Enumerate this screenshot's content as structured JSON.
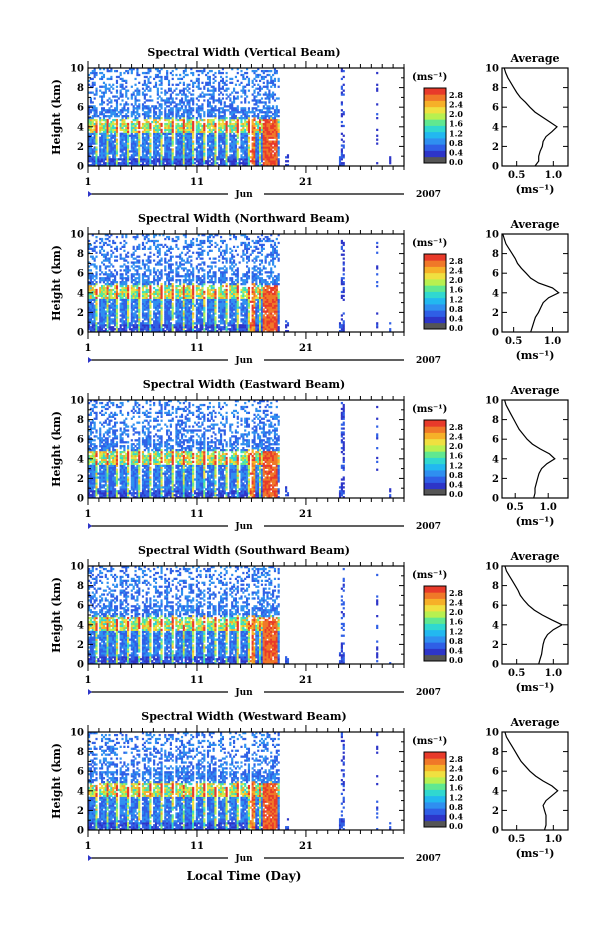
{
  "figure": {
    "xlabel": "Local Time (Day)",
    "month_label": "Jun",
    "year_label": "2007"
  },
  "colorbar": {
    "unit": "(ms⁻¹)",
    "ticks": [
      "0.0",
      "0.4",
      "0.8",
      "1.2",
      "1.6",
      "2.0",
      "2.4",
      "2.8"
    ],
    "colors": [
      "#555555",
      "#2d35c8",
      "#2f5fe6",
      "#2f8ff0",
      "#22b8f0",
      "#30d8d0",
      "#60e890",
      "#b8f050",
      "#f0e040",
      "#f6b028",
      "#f07828",
      "#e83a2a"
    ]
  },
  "chart_data": [
    {
      "type": "heatmap",
      "title": "Spectral Width (Vertical Beam)",
      "ylabel": "Height (km)",
      "ylim": [
        0,
        10
      ],
      "yticks": [
        "0",
        "2",
        "4",
        "6",
        "8",
        "10"
      ],
      "xlim": [
        1,
        30
      ],
      "xticks": [
        "1",
        "11",
        "21"
      ],
      "profile": {
        "title": "Average",
        "xlabel": "(ms⁻¹)",
        "xticks": [
          "0.5",
          "1.0"
        ],
        "xlim": [
          0.3,
          1.2
        ],
        "height_km": [
          0,
          0.5,
          1,
          1.5,
          2,
          2.5,
          3,
          3.5,
          4,
          4.5,
          5,
          5.5,
          6,
          6.5,
          7,
          7.5,
          8,
          8.5,
          9,
          9.5,
          10
        ],
        "width_ms": [
          0.75,
          0.8,
          0.8,
          0.82,
          0.85,
          0.86,
          0.9,
          0.98,
          1.05,
          0.95,
          0.85,
          0.75,
          0.68,
          0.62,
          0.55,
          0.5,
          0.46,
          0.42,
          0.38,
          0.35,
          0.33
        ]
      }
    },
    {
      "type": "heatmap",
      "title": "Spectral Width (Northward Beam)",
      "ylabel": "Height (km)",
      "ylim": [
        0,
        10
      ],
      "yticks": [
        "0",
        "2",
        "4",
        "6",
        "8",
        "10"
      ],
      "xlim": [
        1,
        30
      ],
      "xticks": [
        "1",
        "11",
        "21"
      ],
      "profile": {
        "title": "Average",
        "xlabel": "(ms⁻¹)",
        "xticks": [
          "0.5",
          "1.0"
        ],
        "xlim": [
          0.35,
          1.2
        ],
        "height_km": [
          0,
          0.5,
          1,
          1.5,
          2,
          2.5,
          3,
          3.5,
          4,
          4.5,
          5,
          5.5,
          6,
          6.5,
          7,
          7.5,
          8,
          8.5,
          9,
          9.5,
          10
        ],
        "width_ms": [
          0.72,
          0.74,
          0.76,
          0.78,
          0.82,
          0.85,
          0.88,
          0.95,
          1.08,
          1.0,
          0.82,
          0.72,
          0.66,
          0.6,
          0.55,
          0.52,
          0.48,
          0.44,
          0.4,
          0.38,
          0.36
        ]
      }
    },
    {
      "type": "heatmap",
      "title": "Spectral Width (Eastward Beam)",
      "ylabel": "Height (km)",
      "ylim": [
        0,
        10
      ],
      "yticks": [
        "0",
        "2",
        "4",
        "6",
        "8",
        "10"
      ],
      "xlim": [
        1,
        30
      ],
      "xticks": [
        "1",
        "11",
        "21"
      ],
      "profile": {
        "title": "Average",
        "xlabel": "(ms⁻¹)",
        "xticks": [
          "0.5",
          "1.0"
        ],
        "xlim": [
          0.3,
          1.3
        ],
        "height_km": [
          0,
          0.5,
          1,
          1.5,
          2,
          2.5,
          3,
          3.5,
          4,
          4.5,
          5,
          5.5,
          6,
          6.5,
          7,
          7.5,
          8,
          8.5,
          9,
          9.5,
          10
        ],
        "width_ms": [
          0.78,
          0.8,
          0.8,
          0.82,
          0.84,
          0.86,
          0.9,
          0.98,
          1.1,
          1.02,
          0.88,
          0.76,
          0.68,
          0.62,
          0.56,
          0.52,
          0.48,
          0.44,
          0.4,
          0.36,
          0.34
        ]
      }
    },
    {
      "type": "heatmap",
      "title": "Spectral Width (Southward Beam)",
      "ylabel": "Height (km)",
      "ylim": [
        0,
        10
      ],
      "yticks": [
        "0",
        "2",
        "4",
        "6",
        "8",
        "10"
      ],
      "xlim": [
        1,
        30
      ],
      "xticks": [
        "1",
        "11",
        "21"
      ],
      "profile": {
        "title": "Average",
        "xlabel": "(ms⁻¹)",
        "xticks": [
          "0.5",
          "1.0"
        ],
        "xlim": [
          0.3,
          1.2
        ],
        "height_km": [
          0,
          0.5,
          1,
          1.5,
          2,
          2.5,
          3,
          3.5,
          4,
          4.5,
          5,
          5.5,
          6,
          6.5,
          7,
          7.5,
          8,
          8.5,
          9,
          9.5,
          10
        ],
        "width_ms": [
          0.8,
          0.82,
          0.84,
          0.85,
          0.86,
          0.88,
          0.92,
          1.0,
          1.12,
          0.98,
          0.85,
          0.74,
          0.66,
          0.6,
          0.55,
          0.52,
          0.48,
          0.44,
          0.4,
          0.36,
          0.34
        ]
      }
    },
    {
      "type": "heatmap",
      "title": "Spectral Width (Westward Beam)",
      "ylabel": "Height (km)",
      "ylim": [
        0,
        10
      ],
      "yticks": [
        "0",
        "2",
        "4",
        "6",
        "8",
        "10"
      ],
      "xlim": [
        1,
        30
      ],
      "xticks": [
        "1",
        "11",
        "21"
      ],
      "profile": {
        "title": "Average",
        "xlabel": "(ms⁻¹)",
        "xticks": [
          "0.5",
          "1.0"
        ],
        "xlim": [
          0.3,
          1.2
        ],
        "height_km": [
          0,
          0.5,
          1,
          1.5,
          2,
          2.5,
          3,
          3.5,
          4,
          4.5,
          5,
          5.5,
          6,
          6.5,
          7,
          7.5,
          8,
          8.5,
          9,
          9.5,
          10
        ],
        "width_ms": [
          0.88,
          0.9,
          0.9,
          0.9,
          0.88,
          0.86,
          0.9,
          0.98,
          1.06,
          0.98,
          0.86,
          0.76,
          0.68,
          0.62,
          0.56,
          0.52,
          0.48,
          0.44,
          0.4,
          0.36,
          0.34
        ]
      }
    }
  ]
}
